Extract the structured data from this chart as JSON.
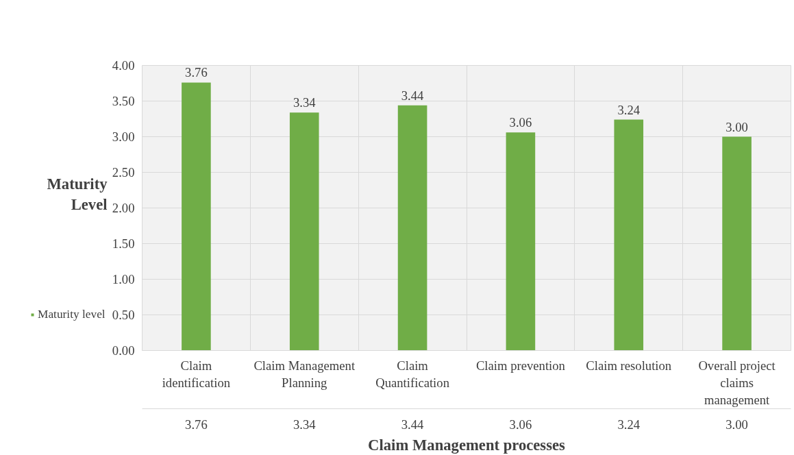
{
  "chart_data": {
    "type": "bar",
    "categories": [
      "Claim identification",
      "Claim Management Planning",
      "Claim Quantification",
      "Claim prevention",
      "Claim resolution",
      "Overall project claims management"
    ],
    "series": [
      {
        "name": "Maturity level",
        "color": "#70ad47",
        "values": [
          3.76,
          3.34,
          3.44,
          3.06,
          3.24,
          3.0
        ]
      }
    ],
    "ylim": [
      0,
      4
    ],
    "yticks": [
      {
        "value": 0,
        "label": "0.00"
      },
      {
        "value": 0.5,
        "label": "0.50"
      },
      {
        "value": 1,
        "label": "1.00"
      },
      {
        "value": 1.5,
        "label": "1.50"
      },
      {
        "value": 2,
        "label": "2.00"
      },
      {
        "value": 2.5,
        "label": "2.50"
      },
      {
        "value": 3,
        "label": "3.00"
      },
      {
        "value": 3.5,
        "label": "3.50"
      },
      {
        "value": 4,
        "label": "4.00"
      }
    ],
    "xlabel": "Claim Management processes",
    "ylabel": "Maturity Level",
    "value_labels": [
      "3.76",
      "3.34",
      "3.44",
      "3.06",
      "3.24",
      "3.00"
    ],
    "grid": true,
    "legend": "bottom left"
  }
}
